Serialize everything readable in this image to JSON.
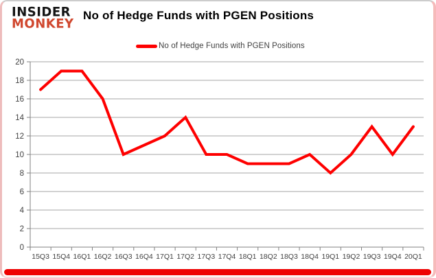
{
  "logo": {
    "line1": "INSIDER",
    "line2": "MONKEY"
  },
  "title": "No of Hedge Funds with PGEN Positions",
  "legend": {
    "label": "No of Hedge Funds with PGEN Positions",
    "position": "top"
  },
  "colors": {
    "series_line": "#fe0000",
    "gridline": "#a6a6a6",
    "axis": "#808080",
    "tick_label": "#404040",
    "logo_accent": "#d0472e",
    "logo_primary": "#141414",
    "accent_bar": "#ee0202",
    "background": "#ffffff"
  },
  "chart_data": {
    "type": "line",
    "title": "No of Hedge Funds with PGEN Positions",
    "series": [
      {
        "name": "No of Hedge Funds with PGEN Positions",
        "values": [
          17,
          19,
          19,
          16,
          10,
          11,
          12,
          14,
          10,
          10,
          9,
          9,
          9,
          10,
          8,
          10,
          13,
          10,
          13
        ]
      }
    ],
    "categories": [
      "15Q3",
      "15Q4",
      "16Q1",
      "16Q2",
      "16Q3",
      "16Q4",
      "17Q1",
      "17Q2",
      "17Q3",
      "17Q4",
      "18Q1",
      "18Q2",
      "18Q3",
      "18Q4",
      "19Q1",
      "19Q2",
      "19Q3",
      "19Q4",
      "20Q1"
    ],
    "xlabel": "",
    "ylabel": "",
    "ylim": [
      0,
      20
    ],
    "yticks": [
      0,
      2,
      4,
      6,
      8,
      10,
      12,
      14,
      16,
      18,
      20
    ],
    "grid": true,
    "legend_position": "top"
  }
}
